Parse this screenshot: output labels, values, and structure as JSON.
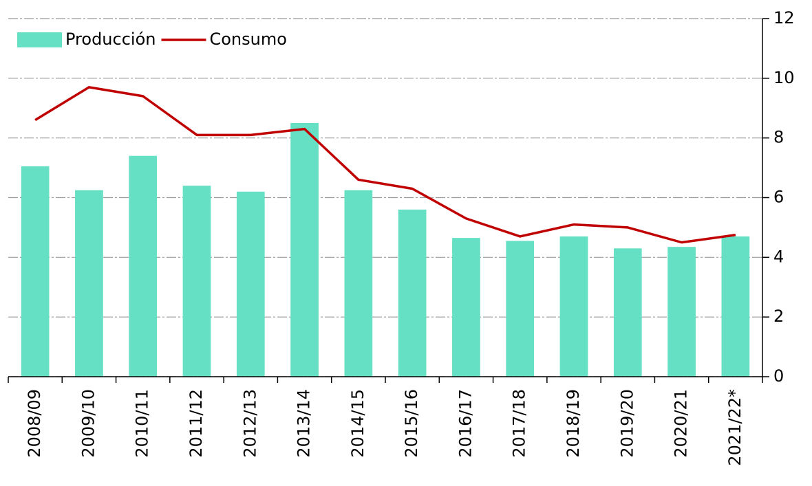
{
  "chart_data": {
    "type": "bar",
    "categories": [
      "2008/09",
      "2009/10",
      "2010/11",
      "2011/12",
      "2012/13",
      "2013/14",
      "2014/15",
      "2015/16",
      "2016/17",
      "2017/18",
      "2018/19",
      "2019/20",
      "2020/21",
      "2021/22*"
    ],
    "series": [
      {
        "name": "Producción",
        "type": "bar",
        "color": "#66e0c4",
        "values": [
          7.05,
          6.25,
          7.4,
          6.4,
          6.2,
          8.5,
          6.25,
          5.6,
          4.65,
          4.55,
          4.7,
          4.3,
          4.35,
          4.7
        ]
      },
      {
        "name": "Consumo",
        "type": "line",
        "color": "#c00000",
        "values": [
          8.6,
          9.7,
          9.4,
          8.1,
          8.1,
          8.3,
          6.6,
          6.3,
          5.3,
          4.7,
          5.1,
          5.0,
          4.5,
          4.75
        ]
      }
    ],
    "ylim": [
      0,
      12
    ],
    "yticks": [
      0,
      2,
      4,
      6,
      8,
      10,
      12
    ],
    "grid": true,
    "y_axis_side": "right",
    "legend": "top-left"
  }
}
